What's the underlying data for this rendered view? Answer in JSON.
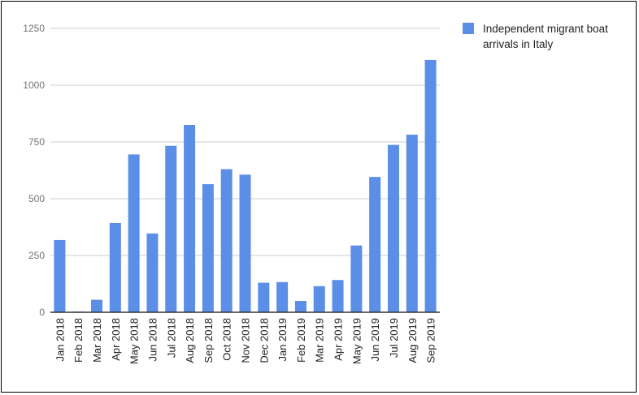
{
  "chart_data": {
    "type": "bar",
    "categories": [
      "Jan 2018",
      "Feb 2018",
      "Mar 2018",
      "Apr 2018",
      "May 2018",
      "Jun 2018",
      "Jul 2018",
      "Aug 2018",
      "Sep 2018",
      "Oct 2018",
      "Nov 2018",
      "Dec 2018",
      "Jan 2019",
      "Feb 2019",
      "Mar 2019",
      "Apr 2019",
      "May 2019",
      "Jun 2019",
      "Jul 2019",
      "Aug 2019",
      "Sep 2019"
    ],
    "series": [
      {
        "name": "Independent migrant boat arrivals in Italy",
        "values": [
          318,
          3,
          55,
          393,
          695,
          347,
          733,
          825,
          564,
          630,
          606,
          130,
          133,
          50,
          115,
          142,
          294,
          596,
          737,
          782,
          1111
        ],
        "color": "#5b8ee6"
      }
    ],
    "yticks": [
      0,
      250,
      500,
      750,
      1000,
      1250
    ],
    "ylim": [
      0,
      1250
    ],
    "grid": true,
    "legend_position": "top-right"
  }
}
